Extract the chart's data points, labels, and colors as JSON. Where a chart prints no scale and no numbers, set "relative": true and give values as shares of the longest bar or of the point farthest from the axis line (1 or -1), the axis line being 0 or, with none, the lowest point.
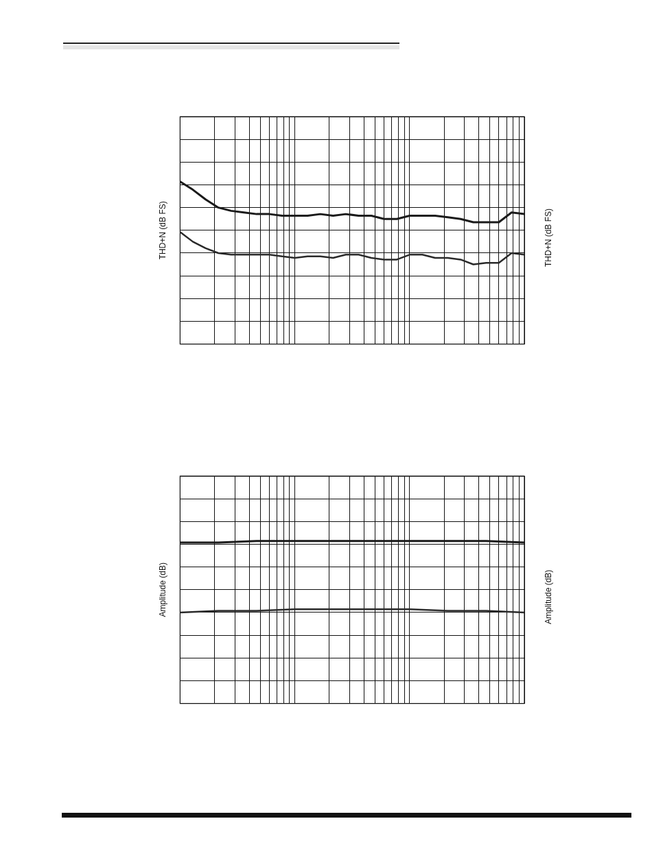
{
  "chart_data": [
    {
      "type": "line",
      "ylabel": "THD+N (dB FS)",
      "y2label": "THD+N (dB FS)",
      "relative": true,
      "grid": true,
      "legend": false,
      "line_style": "solid",
      "categories": [
        null,
        null,
        null,
        null,
        null,
        null,
        null,
        null,
        null,
        null,
        null,
        null,
        null,
        null,
        null,
        null,
        null,
        null,
        null,
        null,
        null,
        null,
        null,
        null,
        null,
        null,
        null,
        null
      ],
      "series": [
        {
          "color": "#1a1a1a",
          "values": [
            1.0,
            0.95,
            0.89,
            0.84,
            0.82,
            0.81,
            0.8,
            0.8,
            0.79,
            0.79,
            0.79,
            0.8,
            0.79,
            0.8,
            0.79,
            0.79,
            0.77,
            0.77,
            0.79,
            0.79,
            0.79,
            0.78,
            0.77,
            0.75,
            0.75,
            0.75,
            0.81,
            0.8
          ]
        },
        {
          "color": "#2a2a2a",
          "values": [
            0.69,
            0.63,
            0.59,
            0.56,
            0.55,
            0.55,
            0.55,
            0.55,
            0.54,
            0.53,
            0.54,
            0.54,
            0.53,
            0.55,
            0.55,
            0.53,
            0.52,
            0.52,
            0.55,
            0.55,
            0.53,
            0.53,
            0.52,
            0.49,
            0.5,
            0.5,
            0.56,
            0.55
          ]
        }
      ]
    },
    {
      "type": "line",
      "ylabel": "Amplitude (dB)",
      "y2label": "Amplitude (dB)",
      "relative": true,
      "grid": true,
      "legend": false,
      "line_style": "solid",
      "categories": [
        null,
        null,
        null,
        null,
        null,
        null,
        null,
        null,
        null,
        null
      ],
      "series": [
        {
          "color": "#1a1a1a",
          "values": [
            0.99,
            0.99,
            1.0,
            1.0,
            1.0,
            1.0,
            1.0,
            1.0,
            1.0,
            0.99
          ]
        },
        {
          "color": "#2a2a2a",
          "values": [
            0.56,
            0.57,
            0.57,
            0.58,
            0.58,
            0.58,
            0.58,
            0.57,
            0.57,
            0.56
          ]
        }
      ]
    }
  ]
}
